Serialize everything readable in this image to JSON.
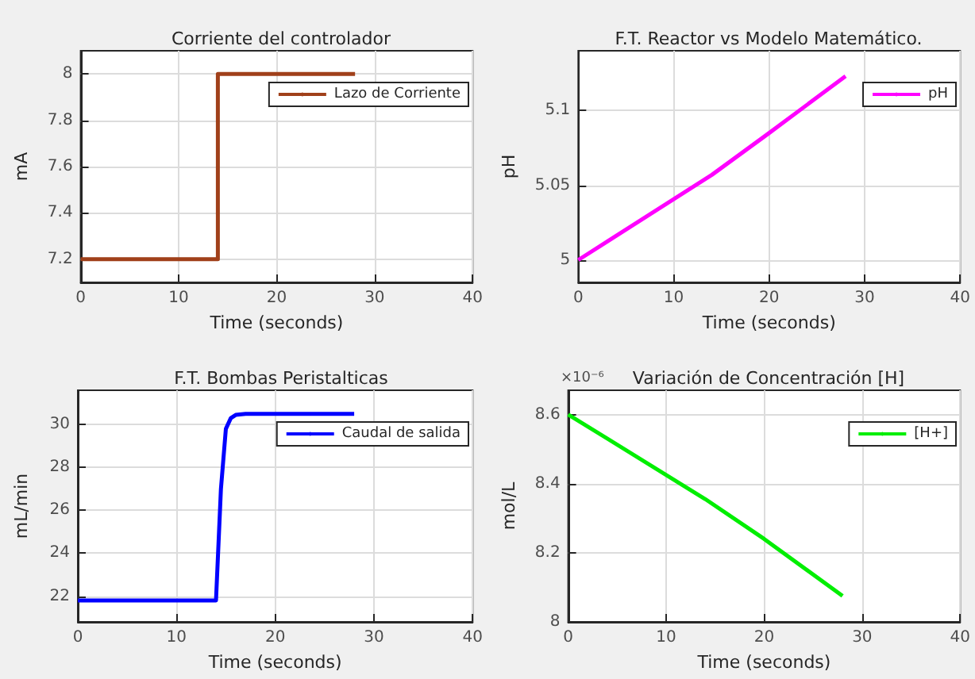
{
  "chart_data": [
    {
      "type": "step",
      "title": "Corriente del controlador",
      "xlabel": "Time (seconds)",
      "ylabel": "mA",
      "xlim": [
        0,
        40
      ],
      "xticks": [
        0,
        10,
        20,
        30,
        40
      ],
      "ylim": [
        7.1,
        8.1
      ],
      "yticks": [
        7.2,
        7.4,
        7.6,
        7.8,
        8
      ],
      "grid": true,
      "legend": "top right",
      "marker": "none",
      "line_style": "solid",
      "series": [
        {
          "name": "Lazo de Corriente",
          "color": "#a0401a",
          "x": [
            0,
            14,
            28
          ],
          "values": [
            7.2,
            8,
            8
          ]
        }
      ]
    },
    {
      "type": "line",
      "title": "F.T. Reactor vs Modelo Matemático.",
      "xlabel": "Time (seconds)",
      "ylabel": "pH",
      "xlim": [
        0,
        40
      ],
      "xticks": [
        0,
        10,
        20,
        30,
        40
      ],
      "ylim": [
        4.985,
        5.14
      ],
      "yticks": [
        5,
        5.05,
        5.1
      ],
      "grid": true,
      "legend": "top right",
      "marker": "none",
      "line_style": "solid",
      "series": [
        {
          "name": "pH",
          "color": "#ff00ff",
          "x": [
            0,
            14,
            20,
            28
          ],
          "values": [
            5.0,
            5.057,
            5.085,
            5.123
          ]
        }
      ]
    },
    {
      "type": "line",
      "title": "F.T. Bombas Peristalticas",
      "xlabel": "Time (seconds)",
      "ylabel": "mL/min",
      "xlim": [
        0,
        40
      ],
      "xticks": [
        0,
        10,
        20,
        30,
        40
      ],
      "ylim": [
        20.8,
        31.6
      ],
      "yticks": [
        22,
        24,
        26,
        28,
        30
      ],
      "grid": true,
      "legend": "top right",
      "marker": "none",
      "line_style": "solid",
      "series": [
        {
          "name": "Caudal de salida",
          "color": "#0000ff",
          "x": [
            0,
            14,
            14.5,
            15,
            15.5,
            16,
            17,
            28
          ],
          "values": [
            21.8,
            21.8,
            27,
            29.8,
            30.3,
            30.45,
            30.5,
            30.5
          ]
        }
      ]
    },
    {
      "type": "line",
      "title": "Variación de Concentración [H]",
      "xlabel": "Time (seconds)",
      "ylabel": "mol/L",
      "annotations": [
        "×10⁻⁶"
      ],
      "xlim": [
        0,
        40
      ],
      "xticks": [
        0,
        10,
        20,
        30,
        40
      ],
      "ylim": [
        8,
        8.67
      ],
      "yticks": [
        8,
        8.2,
        8.4,
        8.6
      ],
      "grid": true,
      "legend": "top right",
      "marker": "none",
      "line_style": "solid",
      "series": [
        {
          "name": "[H+]",
          "color": "#00ee00",
          "x": [
            0,
            14,
            20,
            28
          ],
          "values": [
            8.6,
            8.355,
            8.24,
            8.075
          ]
        }
      ]
    }
  ]
}
